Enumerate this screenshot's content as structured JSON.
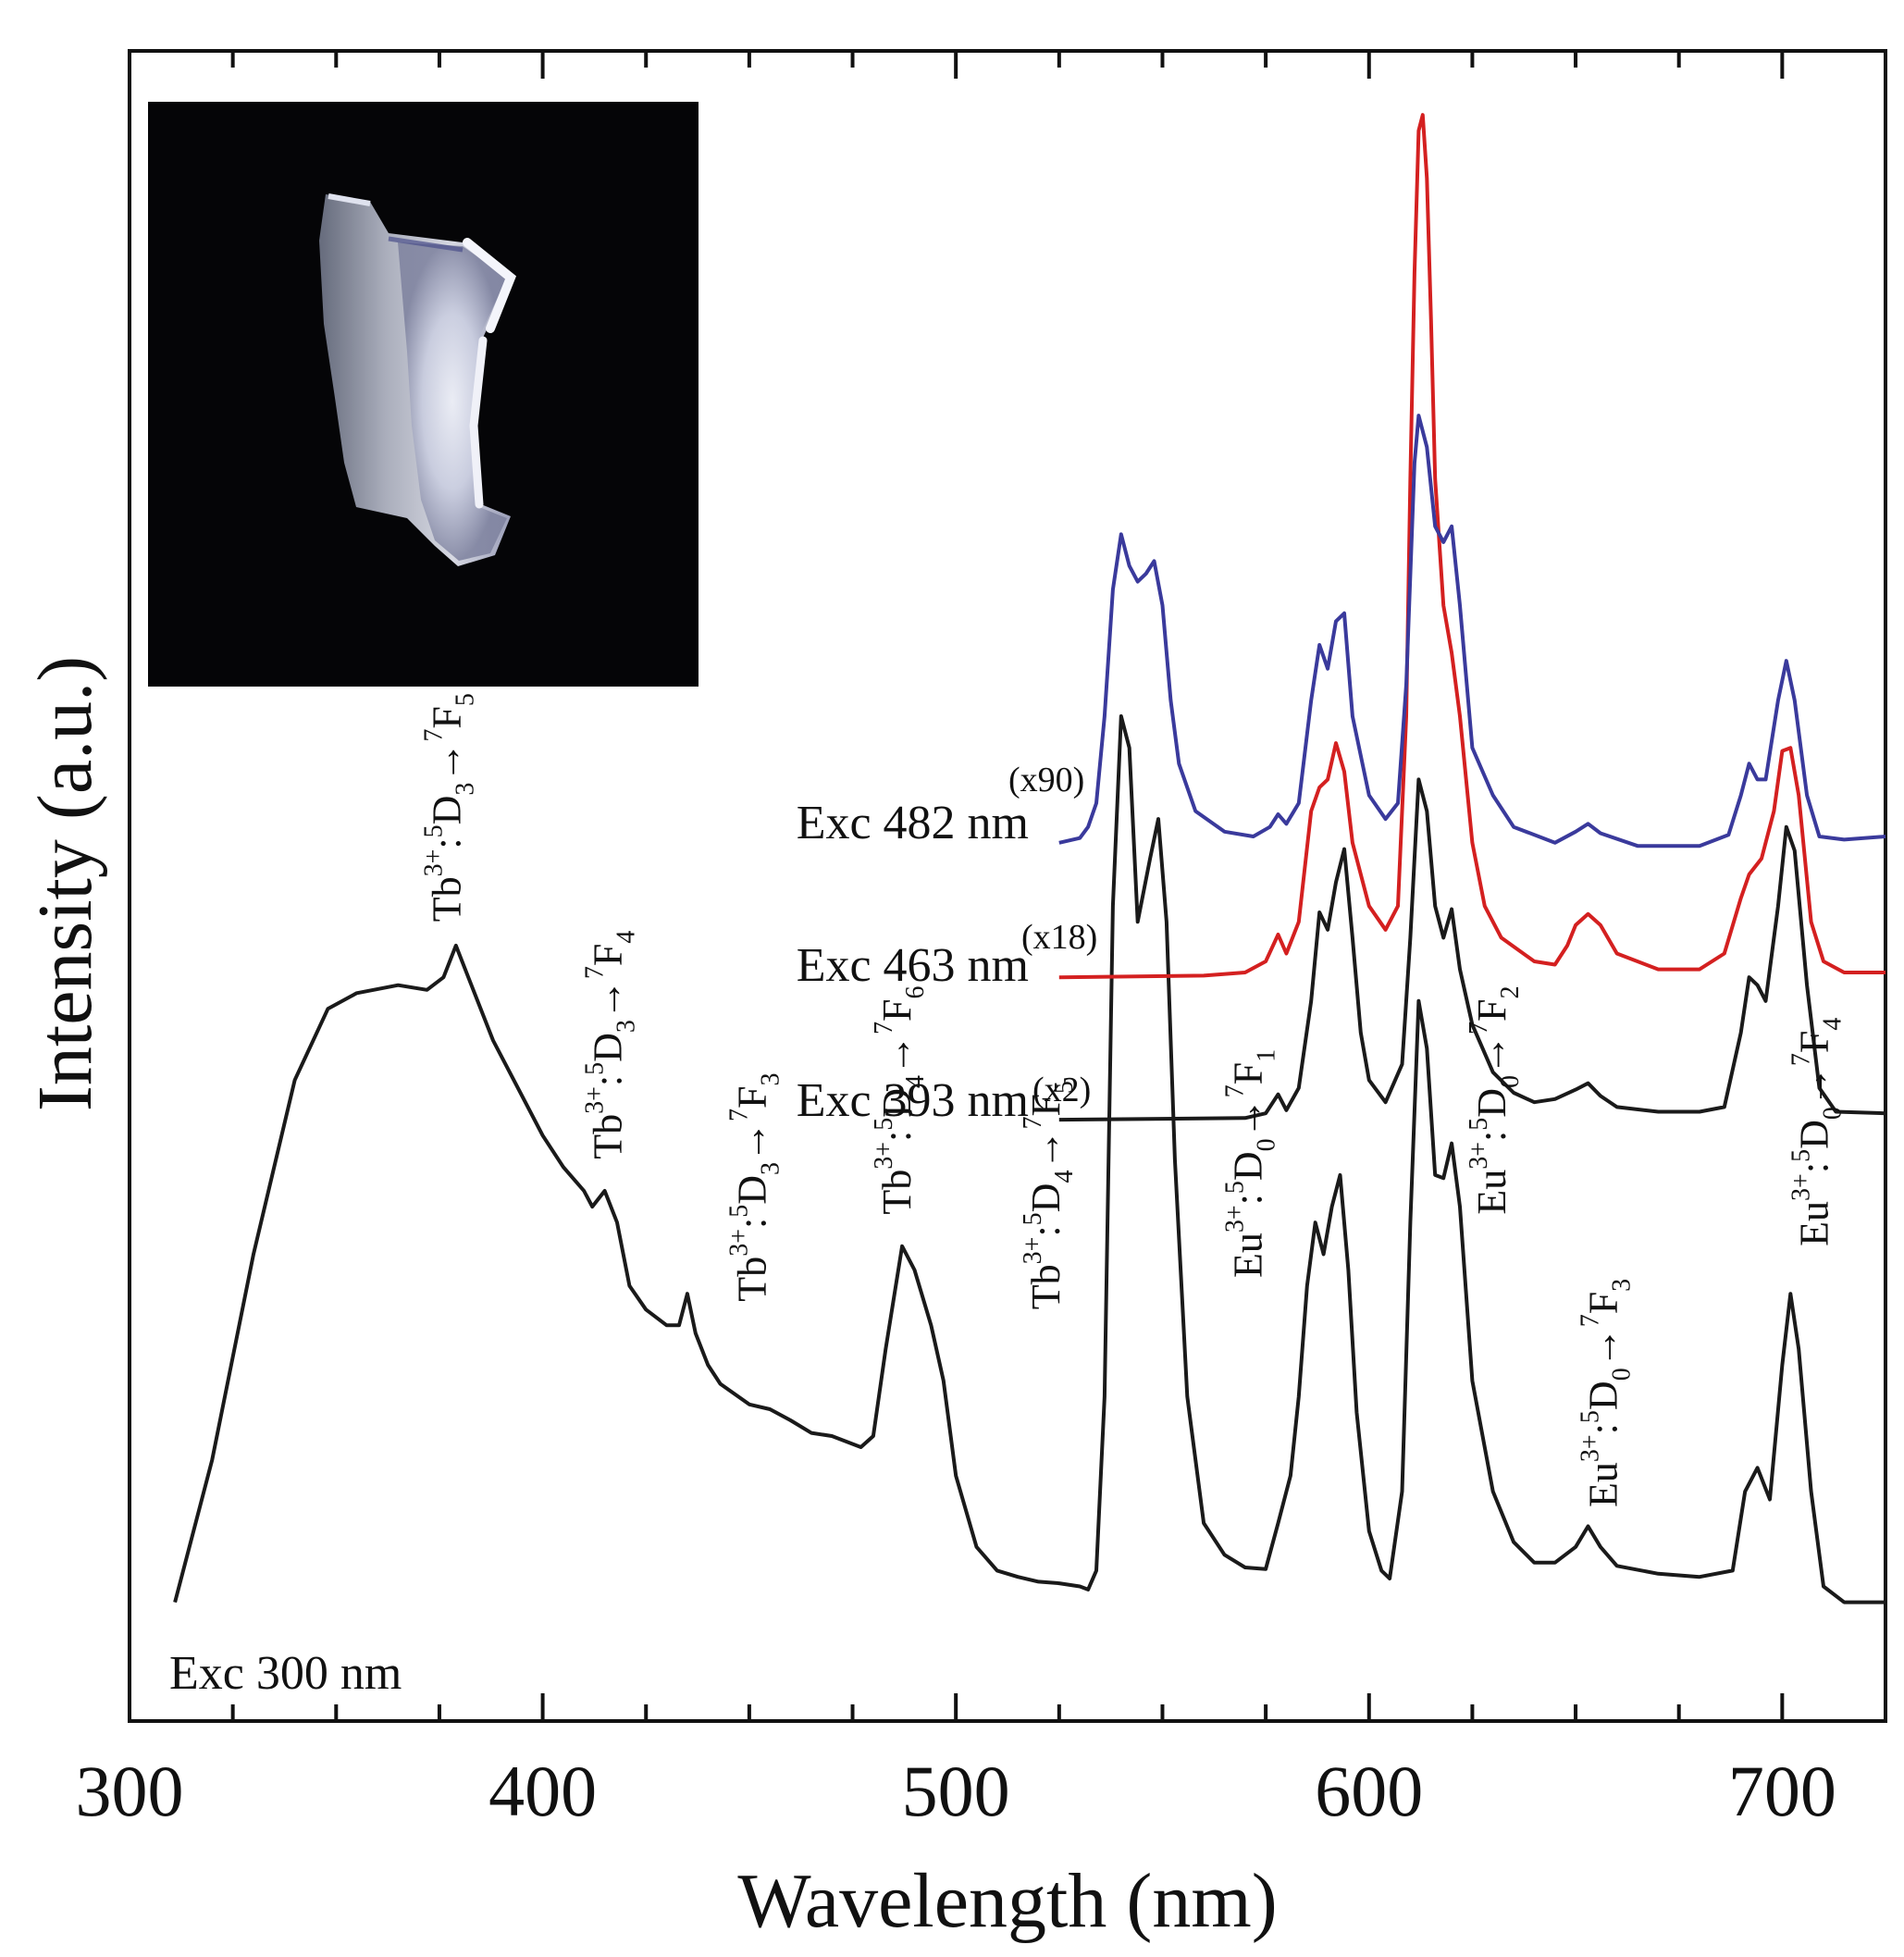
{
  "chart_data": {
    "type": "line",
    "xlabel": "Wavelength (nm)",
    "ylabel": "Intensity (a.u.)",
    "xlim": [
      300,
      725
    ],
    "xticks": [
      300,
      400,
      500,
      600,
      700
    ],
    "x_minor_step": 25,
    "ylim": [
      0,
      100
    ],
    "grid": false,
    "inset_image": "photo of luminescent crystal on black background",
    "series": [
      {
        "name": "Exc 300 nm",
        "multiplier": "",
        "color": "#1a1a1a",
        "points": [
          [
            311,
            4
          ],
          [
            320,
            13
          ],
          [
            330,
            26
          ],
          [
            340,
            37
          ],
          [
            348,
            41.5
          ],
          [
            355,
            42.5
          ],
          [
            365,
            43
          ],
          [
            372,
            42.7
          ],
          [
            376,
            43.5
          ],
          [
            379,
            45.5
          ],
          [
            382,
            43.5
          ],
          [
            388,
            39.5
          ],
          [
            395,
            36
          ],
          [
            400,
            33.5
          ],
          [
            405,
            31.5
          ],
          [
            410,
            30
          ],
          [
            412,
            29
          ],
          [
            415,
            30
          ],
          [
            418,
            28
          ],
          [
            421,
            24
          ],
          [
            425,
            22.5
          ],
          [
            430,
            21.5
          ],
          [
            433,
            21.5
          ],
          [
            435,
            23.5
          ],
          [
            437,
            21
          ],
          [
            440,
            19
          ],
          [
            443,
            17.8
          ],
          [
            450,
            16.5
          ],
          [
            455,
            16.2
          ],
          [
            460,
            15.5
          ],
          [
            465,
            14.7
          ],
          [
            470,
            14.5
          ],
          [
            477,
            13.8
          ],
          [
            480,
            14.5
          ],
          [
            483,
            20
          ],
          [
            487,
            26.5
          ],
          [
            490,
            25
          ],
          [
            494,
            21.5
          ],
          [
            497,
            18
          ],
          [
            500,
            12
          ],
          [
            505,
            7.5
          ],
          [
            510,
            6
          ],
          [
            515,
            5.6
          ],
          [
            520,
            5.3
          ],
          [
            525,
            5.2
          ],
          [
            530,
            5
          ],
          [
            532,
            4.8
          ],
          [
            534,
            6
          ],
          [
            536,
            17
          ],
          [
            538,
            48
          ],
          [
            540,
            60
          ],
          [
            542,
            58
          ],
          [
            544,
            47
          ],
          [
            547,
            51
          ],
          [
            549,
            53.5
          ],
          [
            551,
            47
          ],
          [
            553,
            32
          ],
          [
            556,
            17
          ],
          [
            560,
            9
          ],
          [
            565,
            7
          ],
          [
            570,
            6.2
          ],
          [
            575,
            6.1
          ],
          [
            578,
            9
          ],
          [
            581,
            12
          ],
          [
            583,
            17
          ],
          [
            585,
            24
          ],
          [
            587,
            28
          ],
          [
            589,
            26
          ],
          [
            591,
            29
          ],
          [
            593,
            31
          ],
          [
            595,
            25
          ],
          [
            597,
            16
          ],
          [
            600,
            8.5
          ],
          [
            603,
            6
          ],
          [
            605,
            5.5
          ],
          [
            608,
            11
          ],
          [
            610,
            28
          ],
          [
            612,
            42
          ],
          [
            614,
            39
          ],
          [
            616,
            31
          ],
          [
            618,
            30.8
          ],
          [
            620,
            33
          ],
          [
            622,
            29
          ],
          [
            625,
            18
          ],
          [
            630,
            11
          ],
          [
            635,
            7.8
          ],
          [
            640,
            6.5
          ],
          [
            645,
            6.5
          ],
          [
            650,
            7.5
          ],
          [
            653,
            8.8
          ],
          [
            656,
            7.5
          ],
          [
            660,
            6.3
          ],
          [
            670,
            5.8
          ],
          [
            680,
            5.6
          ],
          [
            688,
            6
          ],
          [
            691,
            11
          ],
          [
            694,
            12.5
          ],
          [
            697,
            10.5
          ],
          [
            700,
            19
          ],
          [
            702,
            23.5
          ],
          [
            704,
            20
          ],
          [
            707,
            11
          ],
          [
            710,
            5
          ],
          [
            715,
            4
          ],
          [
            725,
            4
          ]
        ]
      },
      {
        "name": "Exc 393 nm",
        "multiplier": "(x2)",
        "color": "#1a1a1a",
        "points": [
          [
            525,
            34.5
          ],
          [
            570,
            34.6
          ],
          [
            575,
            34.9
          ],
          [
            578,
            36.1
          ],
          [
            580,
            35.1
          ],
          [
            583,
            36.5
          ],
          [
            586,
            42
          ],
          [
            588,
            47.6
          ],
          [
            590,
            46.5
          ],
          [
            592,
            49.5
          ],
          [
            594,
            51.6
          ],
          [
            596,
            46
          ],
          [
            598,
            40
          ],
          [
            600,
            37
          ],
          [
            604,
            35.6
          ],
          [
            608,
            38
          ],
          [
            610,
            46
          ],
          [
            612,
            56
          ],
          [
            614,
            54
          ],
          [
            616,
            48
          ],
          [
            618,
            46
          ],
          [
            620,
            47.8
          ],
          [
            622,
            44
          ],
          [
            625,
            40.5
          ],
          [
            630,
            37.5
          ],
          [
            635,
            36.2
          ],
          [
            640,
            35.6
          ],
          [
            645,
            35.8
          ],
          [
            650,
            36.4
          ],
          [
            653,
            36.8
          ],
          [
            656,
            36
          ],
          [
            660,
            35.3
          ],
          [
            670,
            35
          ],
          [
            680,
            35
          ],
          [
            686,
            35.3
          ],
          [
            690,
            40
          ],
          [
            692,
            43.5
          ],
          [
            694,
            43
          ],
          [
            696,
            42
          ],
          [
            699,
            48
          ],
          [
            701,
            53
          ],
          [
            703,
            51.5
          ],
          [
            706,
            43
          ],
          [
            709,
            36.5
          ],
          [
            713,
            35
          ],
          [
            725,
            34.9
          ]
        ]
      },
      {
        "name": "Exc 463 nm",
        "multiplier": "(x18)",
        "color": "#d42020",
        "points": [
          [
            525,
            43.5
          ],
          [
            560,
            43.6
          ],
          [
            570,
            43.8
          ],
          [
            575,
            44.5
          ],
          [
            578,
            46.2
          ],
          [
            580,
            45
          ],
          [
            583,
            47
          ],
          [
            586,
            54
          ],
          [
            588,
            55.5
          ],
          [
            590,
            56
          ],
          [
            592,
            58.3
          ],
          [
            594,
            56.5
          ],
          [
            596,
            52
          ],
          [
            600,
            48
          ],
          [
            604,
            46.5
          ],
          [
            607,
            48
          ],
          [
            609,
            60
          ],
          [
            610,
            75
          ],
          [
            611,
            88
          ],
          [
            612,
            97
          ],
          [
            613,
            98
          ],
          [
            614,
            94
          ],
          [
            615,
            85
          ],
          [
            616,
            75
          ],
          [
            618,
            67
          ],
          [
            620,
            64
          ],
          [
            622,
            60
          ],
          [
            625,
            52
          ],
          [
            628,
            48
          ],
          [
            632,
            46
          ],
          [
            640,
            44.5
          ],
          [
            645,
            44.3
          ],
          [
            648,
            45.5
          ],
          [
            650,
            46.8
          ],
          [
            653,
            47.5
          ],
          [
            656,
            46.8
          ],
          [
            660,
            45
          ],
          [
            670,
            44
          ],
          [
            680,
            44
          ],
          [
            686,
            45
          ],
          [
            690,
            48.5
          ],
          [
            692,
            50
          ],
          [
            695,
            51
          ],
          [
            698,
            54
          ],
          [
            700,
            57.8
          ],
          [
            702,
            58
          ],
          [
            704,
            55
          ],
          [
            707,
            47
          ],
          [
            710,
            44.5
          ],
          [
            715,
            43.8
          ],
          [
            725,
            43.8
          ]
        ]
      },
      {
        "name": "Exc 482 nm",
        "multiplier": "(x90)",
        "color": "#3a3a9c",
        "points": [
          [
            525,
            52
          ],
          [
            530,
            52.3
          ],
          [
            532,
            53
          ],
          [
            534,
            54.5
          ],
          [
            536,
            60
          ],
          [
            538,
            68
          ],
          [
            540,
            71.5
          ],
          [
            542,
            69.5
          ],
          [
            544,
            68.5
          ],
          [
            546,
            69
          ],
          [
            548,
            69.8
          ],
          [
            550,
            67
          ],
          [
            552,
            61
          ],
          [
            554,
            57
          ],
          [
            558,
            54
          ],
          [
            565,
            52.7
          ],
          [
            572,
            52.4
          ],
          [
            576,
            53
          ],
          [
            578,
            53.8
          ],
          [
            580,
            53.2
          ],
          [
            583,
            54.5
          ],
          [
            586,
            61
          ],
          [
            588,
            64.5
          ],
          [
            590,
            63
          ],
          [
            592,
            66
          ],
          [
            594,
            66.5
          ],
          [
            596,
            60
          ],
          [
            600,
            55
          ],
          [
            604,
            53.5
          ],
          [
            607,
            54.5
          ],
          [
            609,
            62
          ],
          [
            611,
            76
          ],
          [
            612,
            79
          ],
          [
            614,
            77
          ],
          [
            616,
            72
          ],
          [
            618,
            71
          ],
          [
            620,
            72
          ],
          [
            622,
            67
          ],
          [
            625,
            58
          ],
          [
            630,
            55
          ],
          [
            635,
            53
          ],
          [
            645,
            52
          ],
          [
            650,
            52.7
          ],
          [
            653,
            53.2
          ],
          [
            656,
            52.6
          ],
          [
            665,
            51.8
          ],
          [
            680,
            51.8
          ],
          [
            687,
            52.5
          ],
          [
            690,
            55
          ],
          [
            692,
            57
          ],
          [
            694,
            56
          ],
          [
            696,
            56
          ],
          [
            699,
            61
          ],
          [
            701,
            63.5
          ],
          [
            703,
            61
          ],
          [
            706,
            55
          ],
          [
            709,
            52.4
          ],
          [
            715,
            52.2
          ],
          [
            725,
            52.4
          ]
        ]
      }
    ],
    "annotations": [
      {
        "ion": "Tb",
        "charge": "3+",
        "up": "5",
        "state": "D",
        "sub": "3",
        "low": "7",
        "lstate": "F",
        "lsub": "5",
        "x": 380,
        "y": 47
      },
      {
        "ion": "Tb",
        "charge": "3+",
        "up": "5",
        "state": "D",
        "sub": "3",
        "low": "7",
        "lstate": "F",
        "lsub": "4",
        "x": 419,
        "y": 32
      },
      {
        "ion": "Tb",
        "charge": "3+",
        "up": "5",
        "state": "D",
        "sub": "3",
        "low": "7",
        "lstate": "F",
        "lsub": "3",
        "x": 454,
        "y": 23
      },
      {
        "ion": "Tb",
        "charge": "3+",
        "up": "5",
        "state": "D",
        "sub": "4",
        "low": "7",
        "lstate": "F",
        "lsub": "6",
        "x": 489,
        "y": 28.5
      },
      {
        "ion": "Tb",
        "charge": "3+",
        "up": "5",
        "state": "D",
        "sub": "4",
        "low": "7",
        "lstate": "F",
        "lsub": "5",
        "x": 525,
        "y": 22.5
      },
      {
        "ion": "Eu",
        "charge": "3+",
        "up": "5",
        "state": "D",
        "sub": "0",
        "low": "7",
        "lstate": "F",
        "lsub": "1",
        "x": 574,
        "y": 24.5
      },
      {
        "ion": "Eu",
        "charge": "3+",
        "up": "5",
        "state": "D",
        "sub": "0",
        "low": "7",
        "lstate": "F",
        "lsub": "2",
        "x": 633,
        "y": 28.5
      },
      {
        "ion": "Eu",
        "charge": "3+",
        "up": "5",
        "state": "D",
        "sub": "0",
        "low": "7",
        "lstate": "F",
        "lsub": "3",
        "x": 660,
        "y": 10
      },
      {
        "ion": "Eu",
        "charge": "3+",
        "up": "5",
        "state": "D",
        "sub": "0",
        "low": "7",
        "lstate": "F",
        "lsub": "4",
        "x": 711,
        "y": 26.5
      }
    ]
  }
}
